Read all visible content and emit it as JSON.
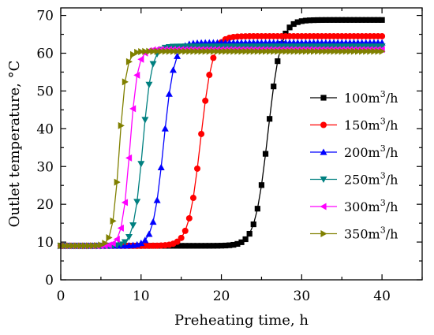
{
  "chart_data": {
    "type": "line",
    "title": "",
    "xlabel": "Preheating time, h",
    "ylabel": "Outlet temperature, °C",
    "xlim": [
      0,
      45
    ],
    "ylim": [
      0,
      72
    ],
    "x_ticks": [
      0,
      10,
      20,
      30,
      40
    ],
    "y_ticks": [
      0,
      10,
      20,
      30,
      40,
      50,
      60,
      70
    ],
    "grid": false,
    "legend_position": "right",
    "marker_interval": 0.5,
    "x_start": 0,
    "x_end": 40,
    "series": [
      {
        "name": "100m3/h",
        "label_base": "100m",
        "label_sup": "3",
        "label_tail": "/h",
        "color": "#000000",
        "marker": "square",
        "curve": {
          "baseline": 9,
          "plateau": 68.8,
          "midpoint_x": 25.8,
          "steepness": 1.25
        }
      },
      {
        "name": "150m3/h",
        "label_base": "150m",
        "label_sup": "3",
        "label_tail": "/h",
        "color": "#ff0000",
        "marker": "circle",
        "curve": {
          "baseline": 9,
          "plateau": 64.5,
          "midpoint_x": 17.4,
          "steepness": 1.35
        }
      },
      {
        "name": "200m3/h",
        "label_base": "200m",
        "label_sup": "3",
        "label_tail": "/h",
        "color": "#0000ff",
        "marker": "triangle-up",
        "curve": {
          "baseline": 9,
          "plateau": 62.8,
          "midpoint_x": 12.8,
          "steepness": 1.55
        }
      },
      {
        "name": "250m3/h",
        "label_base": "250m",
        "label_sup": "3",
        "label_tail": "/h",
        "color": "#008080",
        "marker": "triangle-down",
        "curve": {
          "baseline": 9,
          "plateau": 61.8,
          "midpoint_x": 10.2,
          "steepness": 1.8
        }
      },
      {
        "name": "300m3/h",
        "label_base": "300m",
        "label_sup": "3",
        "label_tail": "/h",
        "color": "#ff00ff",
        "marker": "triangle-left",
        "curve": {
          "baseline": 9,
          "plateau": 61.0,
          "midpoint_x": 8.6,
          "steepness": 2.1
        }
      },
      {
        "name": "350m3/h",
        "label_base": "350m",
        "label_sup": "3",
        "label_tail": "/h",
        "color": "#808000",
        "marker": "triangle-right",
        "curve": {
          "baseline": 9,
          "plateau": 60.5,
          "midpoint_x": 7.3,
          "steepness": 2.4
        }
      }
    ]
  }
}
